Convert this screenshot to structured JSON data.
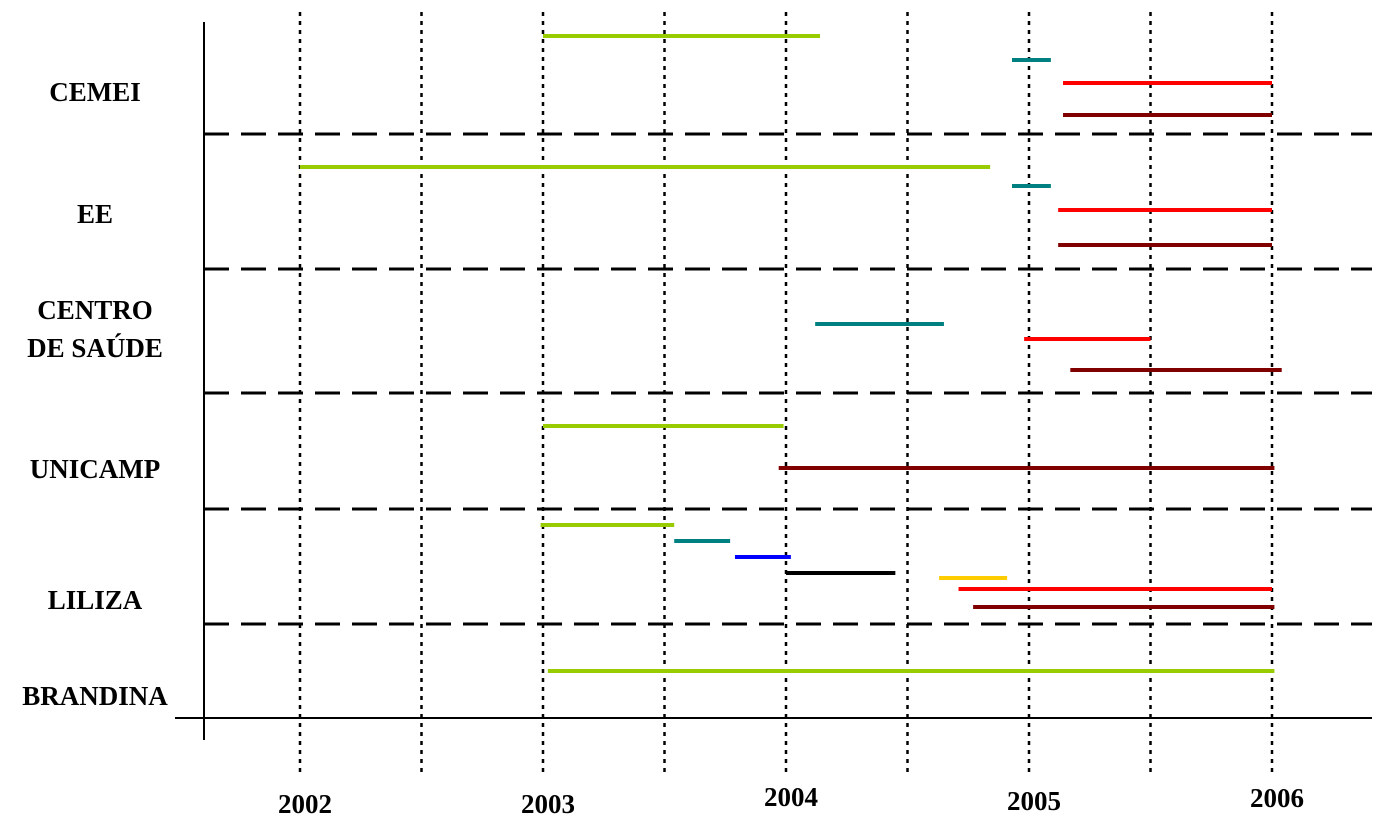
{
  "chart_data": {
    "type": "gantt",
    "x_ticks": [
      {
        "value": 2002,
        "label": "2002"
      },
      {
        "value": 2003,
        "label": "2003"
      },
      {
        "value": 2004,
        "label": "2004"
      },
      {
        "value": 2005,
        "label": "2005"
      },
      {
        "value": 2006,
        "label": "2006"
      }
    ],
    "half_year_gridlines": [
      2002.5,
      2003.5,
      2004.5,
      2005.5
    ],
    "xlim": [
      2001.6,
      2006.48
    ],
    "grid": "vertical dotted lines each half-year; horizontal dashed separators between groups",
    "categories": [
      {
        "lines": [
          "CEMEI"
        ]
      },
      {
        "lines": [
          "EE"
        ]
      },
      {
        "lines": [
          "CENTRO",
          "DE SAÚDE"
        ]
      },
      {
        "lines": [
          "UNICAMP"
        ]
      },
      {
        "lines": [
          "LILIZA"
        ]
      },
      {
        "lines": [
          "BRANDINA"
        ]
      }
    ],
    "bars": [
      {
        "group": 0,
        "row": 0,
        "start": 2003.0,
        "end": 2004.14,
        "color": "#99cc00"
      },
      {
        "group": 0,
        "row": 1,
        "start": 2004.93,
        "end": 2005.09,
        "color": "#008080"
      },
      {
        "group": 0,
        "row": 2,
        "start": 2005.14,
        "end": 2006.0,
        "color": "#ff0000"
      },
      {
        "group": 0,
        "row": 3,
        "start": 2005.14,
        "end": 2006.0,
        "color": "#800000"
      },
      {
        "group": 1,
        "row": 0,
        "start": 2002.0,
        "end": 2004.84,
        "color": "#99cc00"
      },
      {
        "group": 1,
        "row": 1,
        "start": 2004.93,
        "end": 2005.09,
        "color": "#008080"
      },
      {
        "group": 1,
        "row": 2,
        "start": 2005.12,
        "end": 2006.0,
        "color": "#ff0000"
      },
      {
        "group": 1,
        "row": 3,
        "start": 2005.12,
        "end": 2006.0,
        "color": "#800000"
      },
      {
        "group": 2,
        "row": 0,
        "start": 2004.12,
        "end": 2004.65,
        "color": "#008080"
      },
      {
        "group": 2,
        "row": 1,
        "start": 2004.98,
        "end": 2005.5,
        "color": "#ff0000"
      },
      {
        "group": 2,
        "row": 2,
        "start": 2005.17,
        "end": 2006.04,
        "color": "#800000"
      },
      {
        "group": 3,
        "row": 0,
        "start": 2003.0,
        "end": 2003.99,
        "color": "#99cc00"
      },
      {
        "group": 3,
        "row": 1,
        "start": 2003.97,
        "end": 2006.01,
        "color": "#800000"
      },
      {
        "group": 4,
        "row": 0,
        "start": 2002.99,
        "end": 2003.54,
        "color": "#99cc00"
      },
      {
        "group": 4,
        "row": 1,
        "start": 2003.54,
        "end": 2003.77,
        "color": "#008080"
      },
      {
        "group": 4,
        "row": 2,
        "start": 2003.79,
        "end": 2004.02,
        "color": "#0000ff"
      },
      {
        "group": 4,
        "row": 3,
        "start": 2004.0,
        "end": 2004.45,
        "color": "#000000"
      },
      {
        "group": 4,
        "row": 4,
        "start": 2004.63,
        "end": 2004.91,
        "color": "#ffcc00"
      },
      {
        "group": 4,
        "row": 5,
        "start": 2004.71,
        "end": 2006.0,
        "color": "#ff0000"
      },
      {
        "group": 4,
        "row": 6,
        "start": 2004.77,
        "end": 2006.01,
        "color": "#800000"
      },
      {
        "group": 5,
        "row": 0,
        "start": 2003.02,
        "end": 2006.01,
        "color": "#99cc00"
      }
    ]
  }
}
